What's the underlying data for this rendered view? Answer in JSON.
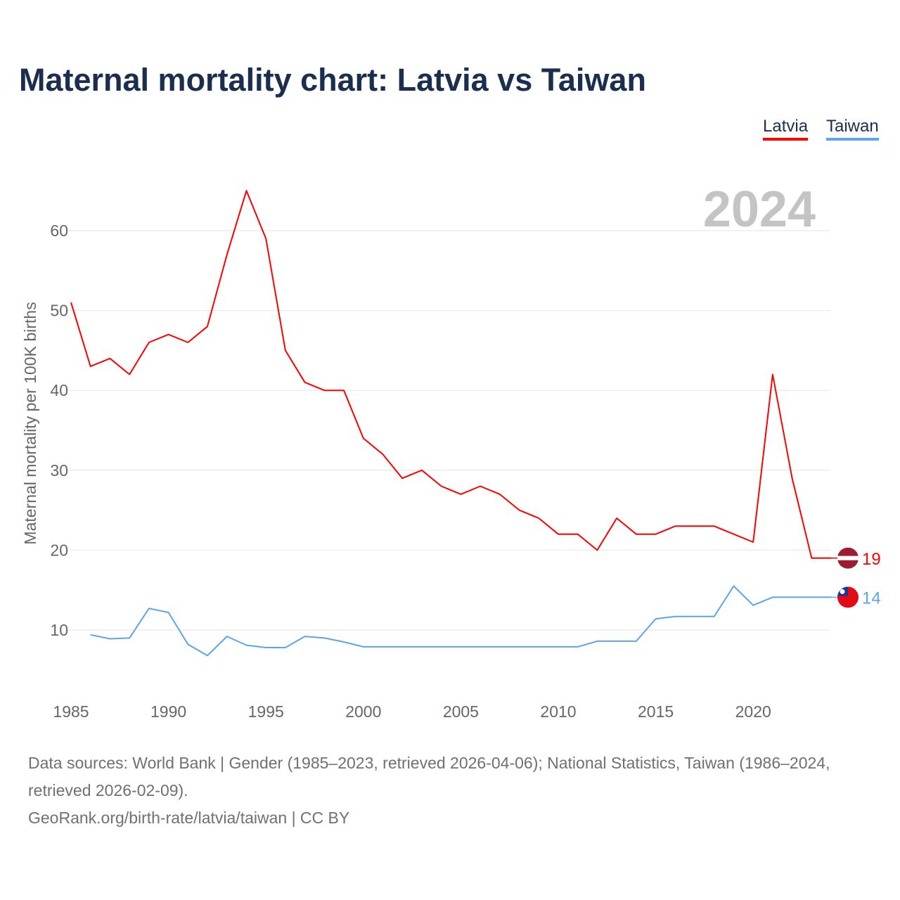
{
  "chart_data": {
    "type": "line",
    "title": "Maternal mortality chart: Latvia vs Taiwan",
    "ylabel": "Maternal mortality per 100K births",
    "xlabel": "",
    "year_label": "2024",
    "xlim": [
      1985,
      2024
    ],
    "ylim": [
      3,
      67
    ],
    "yticks": [
      10,
      20,
      30,
      40,
      50,
      60
    ],
    "xticks": [
      1985,
      1990,
      1995,
      2000,
      2005,
      2010,
      2015,
      2020
    ],
    "grid": true,
    "legend_position": "top-right",
    "series": [
      {
        "name": "Latvia",
        "color": "#ff0000",
        "end_label": "19",
        "x": [
          1985,
          1986,
          1987,
          1988,
          1989,
          1990,
          1991,
          1992,
          1993,
          1994,
          1995,
          1996,
          1997,
          1998,
          1999,
          2000,
          2001,
          2002,
          2003,
          2004,
          2005,
          2006,
          2007,
          2008,
          2009,
          2010,
          2011,
          2012,
          2013,
          2014,
          2015,
          2016,
          2017,
          2018,
          2019,
          2020,
          2021,
          2022,
          2023,
          2024
        ],
        "values": [
          51,
          43,
          44,
          42,
          46,
          47,
          46,
          48,
          57,
          65,
          59,
          45,
          41,
          40,
          40,
          34,
          32,
          29,
          30,
          28,
          27,
          28,
          27,
          25,
          24,
          22,
          22,
          20,
          24,
          22,
          22,
          23,
          23,
          23,
          22,
          21,
          42,
          29,
          19,
          19
        ]
      },
      {
        "name": "Taiwan",
        "color": "#5aa5ee",
        "end_label": "14",
        "x": [
          1986,
          1987,
          1988,
          1989,
          1990,
          1991,
          1992,
          1993,
          1994,
          1995,
          1996,
          1997,
          1998,
          1999,
          2000,
          2001,
          2002,
          2003,
          2004,
          2005,
          2006,
          2007,
          2008,
          2009,
          2010,
          2011,
          2012,
          2013,
          2014,
          2015,
          2016,
          2017,
          2018,
          2019,
          2020,
          2021,
          2022,
          2023,
          2024
        ],
        "values": [
          9.4,
          8.9,
          9.0,
          12.7,
          12.2,
          8.2,
          6.8,
          9.2,
          8.1,
          7.8,
          7.8,
          9.2,
          9.0,
          8.5,
          7.9,
          7.9,
          7.9,
          7.9,
          7.9,
          7.9,
          7.9,
          7.9,
          7.9,
          7.9,
          7.9,
          7.9,
          8.6,
          8.6,
          8.6,
          11.4,
          11.7,
          11.7,
          11.7,
          15.5,
          13.1,
          14.1,
          14.1,
          14.1,
          14.1
        ]
      }
    ]
  },
  "footer": {
    "sources": "Data sources: World Bank | Gender (1985–2023, retrieved 2026-04-06); National Statistics, Taiwan (1986–2024, retrieved 2026-02-09).",
    "attribution": "GeoRank.org/birth-rate/latvia/taiwan | CC BY"
  }
}
